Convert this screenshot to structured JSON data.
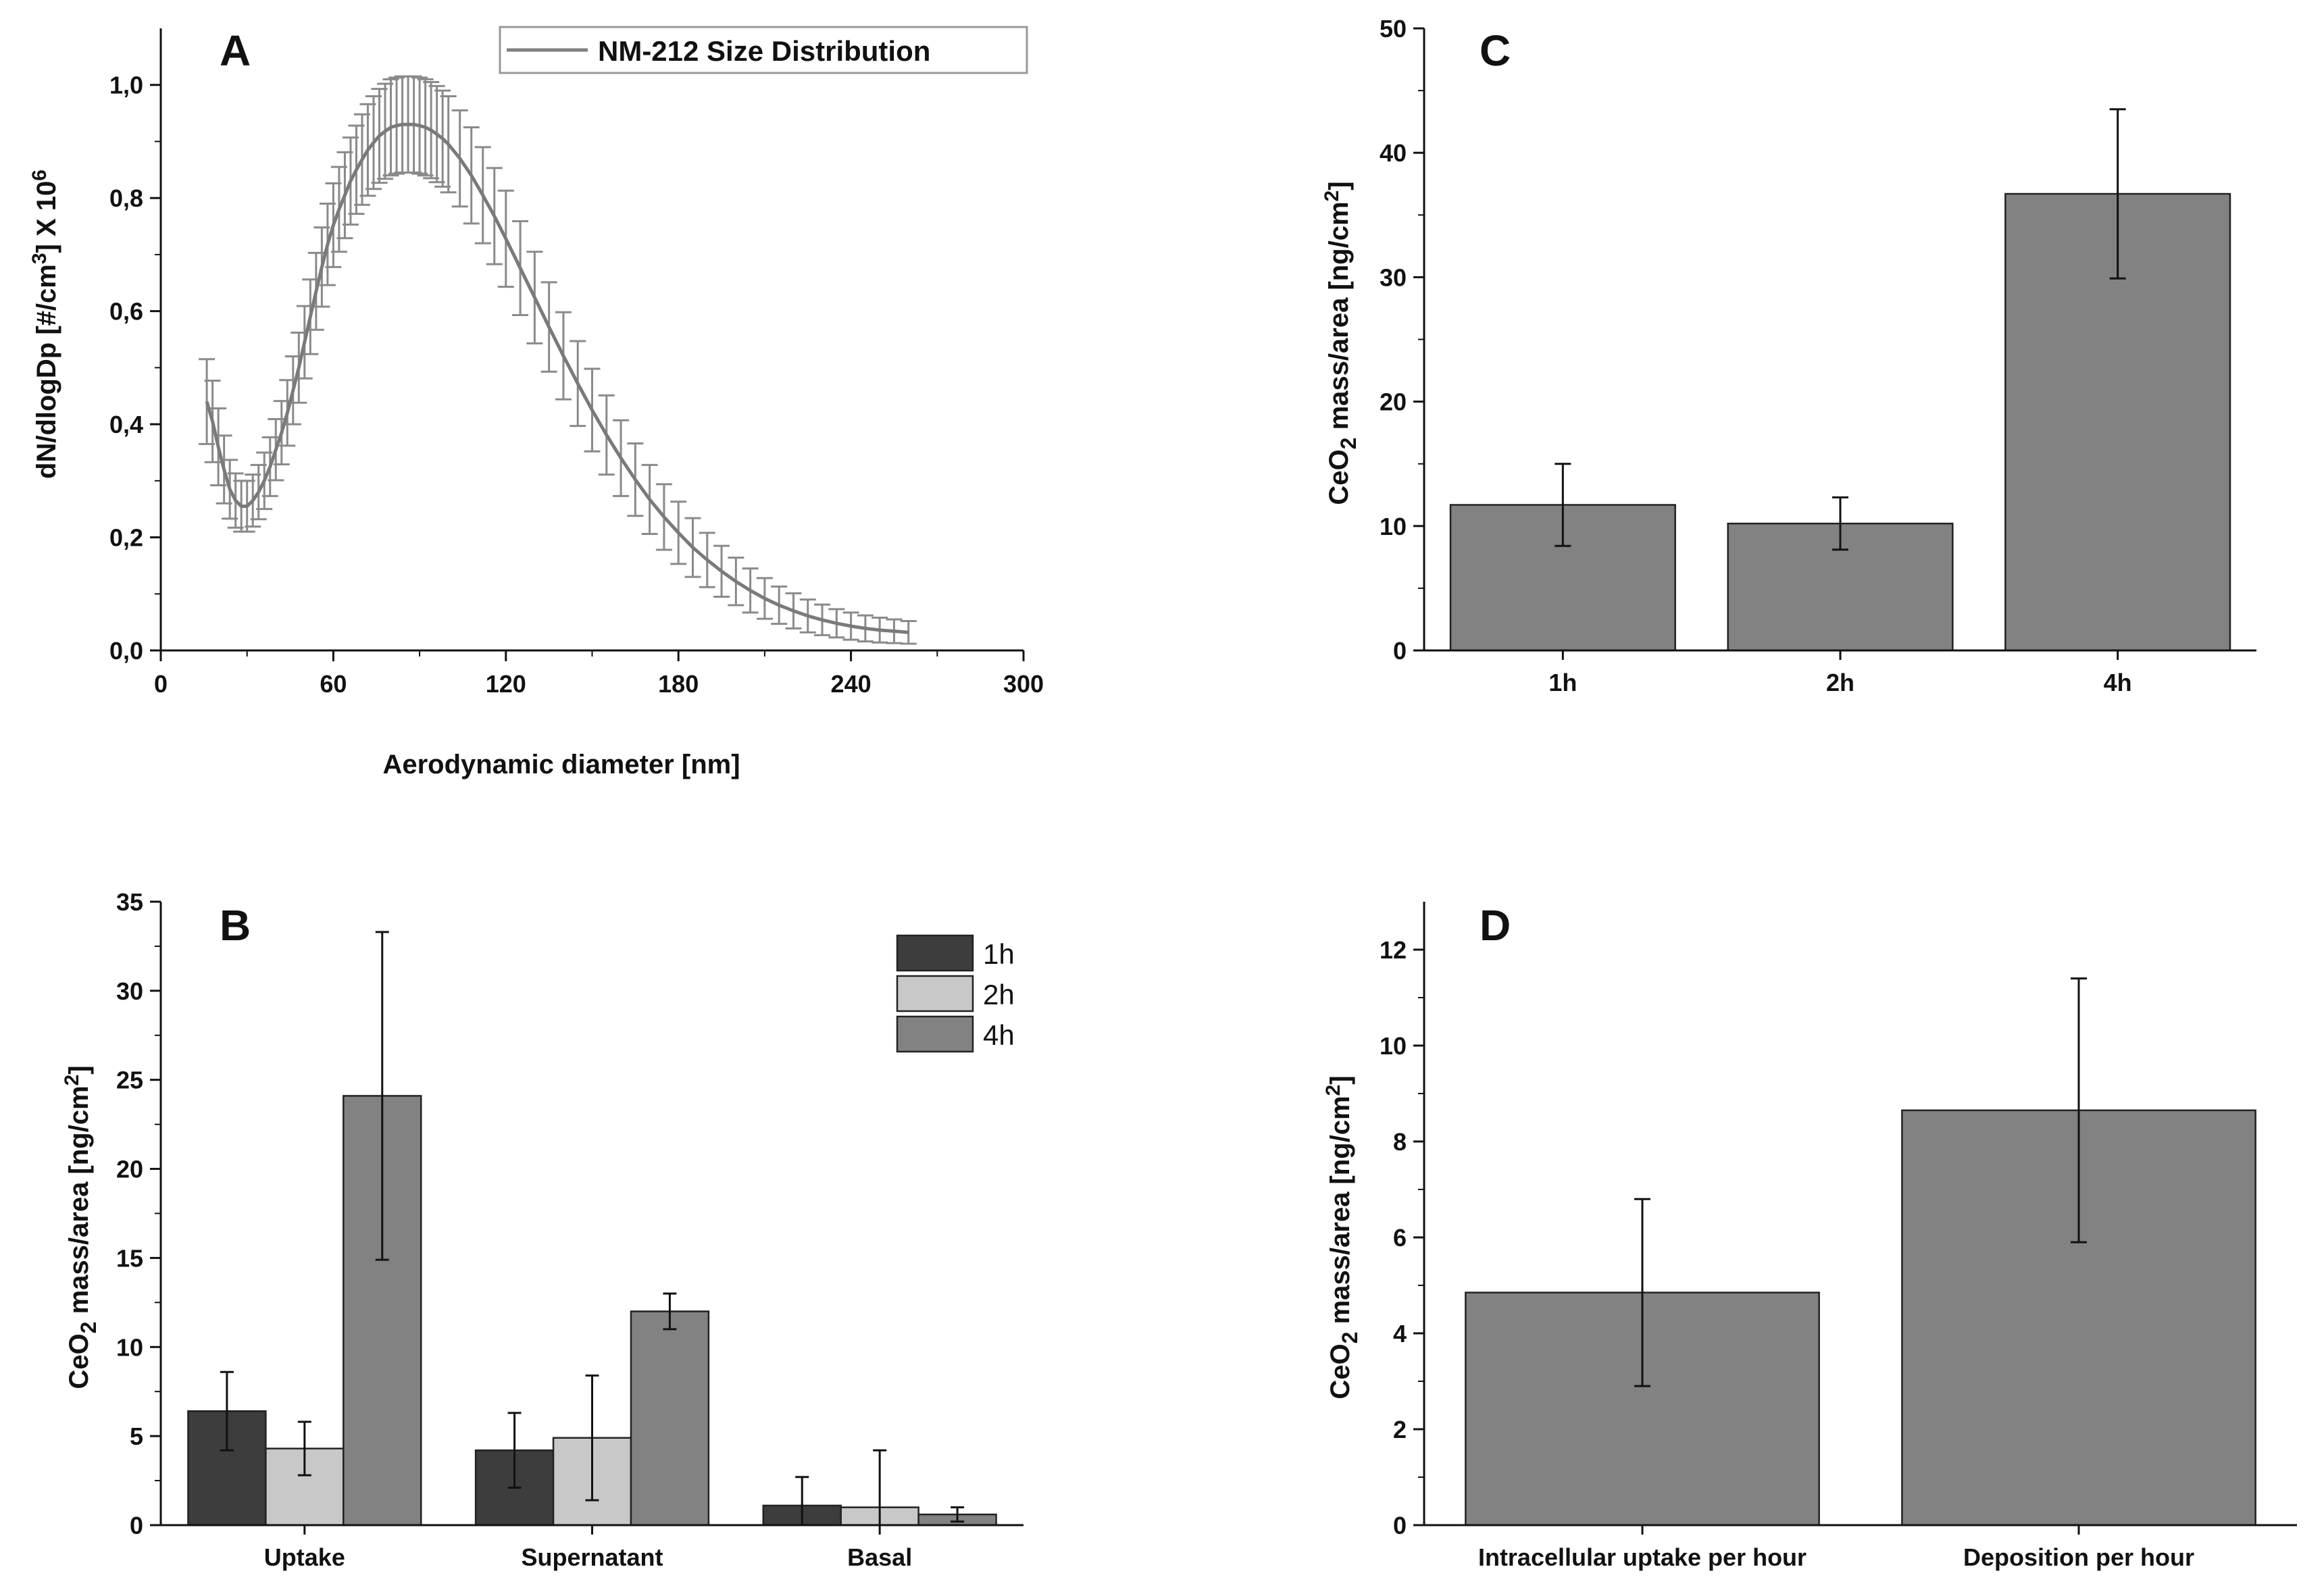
{
  "chart_data": [
    {
      "panel": "A",
      "type": "line",
      "legend": [
        "NM-212 Size Distribution"
      ],
      "xlabel": "Aerodynamic diameter [nm]",
      "ylabel_main": "dN/dlogDp [#/cm",
      "ylabel_sup1": "3",
      "ylabel_mid": "] X 10",
      "ylabel_sup2": "6",
      "xlim": [
        0,
        300
      ],
      "ylim": [
        0,
        1.1
      ],
      "xticks": [
        0,
        60,
        120,
        180,
        240,
        300
      ],
      "xtick_labels": [
        "0",
        "60",
        "120",
        "180",
        "240",
        "300"
      ],
      "yticks": [
        0,
        0.2,
        0.4,
        0.6,
        0.8,
        1.0
      ],
      "ytick_labels": [
        "0,0",
        "0,2",
        "0,4",
        "0,6",
        "0,8",
        "1,0"
      ],
      "series": [
        {
          "name": "NM-212 Size Distribution",
          "x": [
            16,
            18,
            20,
            22,
            24,
            26,
            28,
            30,
            32,
            34,
            36,
            38,
            40,
            42,
            44,
            46,
            48,
            50,
            52,
            54,
            56,
            58,
            60,
            62,
            64,
            66,
            68,
            70,
            72,
            74,
            76,
            78,
            80,
            82,
            84,
            86,
            88,
            90,
            92,
            94,
            96,
            98,
            100,
            104,
            108,
            112,
            116,
            120,
            125,
            130,
            135,
            140,
            145,
            150,
            155,
            160,
            165,
            170,
            175,
            180,
            185,
            190,
            195,
            200,
            205,
            210,
            215,
            220,
            225,
            230,
            235,
            240,
            245,
            250,
            255,
            260
          ],
          "y": [
            0.44,
            0.405,
            0.36,
            0.32,
            0.285,
            0.265,
            0.255,
            0.255,
            0.265,
            0.28,
            0.3,
            0.325,
            0.355,
            0.385,
            0.42,
            0.46,
            0.5,
            0.545,
            0.59,
            0.635,
            0.678,
            0.718,
            0.752,
            0.78,
            0.805,
            0.83,
            0.85,
            0.868,
            0.885,
            0.898,
            0.91,
            0.918,
            0.925,
            0.928,
            0.93,
            0.93,
            0.93,
            0.928,
            0.925,
            0.92,
            0.913,
            0.905,
            0.895,
            0.87,
            0.84,
            0.805,
            0.768,
            0.728,
            0.676,
            0.624,
            0.572,
            0.521,
            0.472,
            0.425,
            0.381,
            0.34,
            0.302,
            0.267,
            0.236,
            0.208,
            0.182,
            0.16,
            0.14,
            0.122,
            0.106,
            0.092,
            0.08,
            0.07,
            0.061,
            0.054,
            0.048,
            0.043,
            0.039,
            0.036,
            0.034,
            0.032
          ],
          "error": [
            0.075,
            0.072,
            0.068,
            0.06,
            0.052,
            0.048,
            0.045,
            0.045,
            0.046,
            0.048,
            0.05,
            0.052,
            0.054,
            0.056,
            0.058,
            0.06,
            0.062,
            0.064,
            0.066,
            0.068,
            0.07,
            0.072,
            0.074,
            0.075,
            0.076,
            0.077,
            0.078,
            0.08,
            0.081,
            0.082,
            0.083,
            0.084,
            0.085,
            0.085,
            0.085,
            0.085,
            0.085,
            0.085,
            0.085,
            0.085,
            0.085,
            0.085,
            0.085,
            0.085,
            0.085,
            0.085,
            0.085,
            0.085,
            0.083,
            0.081,
            0.079,
            0.077,
            0.075,
            0.073,
            0.07,
            0.067,
            0.064,
            0.061,
            0.058,
            0.055,
            0.052,
            0.048,
            0.045,
            0.042,
            0.039,
            0.036,
            0.033,
            0.031,
            0.029,
            0.027,
            0.025,
            0.024,
            0.023,
            0.022,
            0.021,
            0.02
          ]
        }
      ]
    },
    {
      "panel": "B",
      "type": "bar",
      "categories": [
        "Uptake",
        "Supernatant",
        "Basal"
      ],
      "ylabel_pre": "CeO",
      "ylabel_sub": "2",
      "ylabel_post": " mass/area [ng/cm",
      "ylabel_sup": "2",
      "ylabel_end": "]",
      "ylim": [
        0,
        35
      ],
      "yticks": [
        0,
        5,
        10,
        15,
        20,
        25,
        30,
        35
      ],
      "ytick_labels": [
        "0",
        "5",
        "10",
        "15",
        "20",
        "25",
        "30",
        "35"
      ],
      "series": [
        {
          "name": "1h",
          "color": "#3d3d3d",
          "values": [
            6.4,
            4.2,
            1.1
          ],
          "errors": [
            2.2,
            2.1,
            1.6
          ]
        },
        {
          "name": "2h",
          "color": "#c8c8c8",
          "values": [
            4.3,
            4.9,
            1.0
          ],
          "errors": [
            1.5,
            3.5,
            3.2
          ]
        },
        {
          "name": "4h",
          "color": "#828282",
          "values": [
            24.1,
            12.0,
            0.6
          ],
          "errors": [
            9.2,
            1.0,
            0.4
          ]
        }
      ]
    },
    {
      "panel": "C",
      "type": "bar",
      "categories": [
        "1h",
        "2h",
        "4h"
      ],
      "ylabel_pre": "CeO",
      "ylabel_sub": "2",
      "ylabel_post": " mass/area [ng/cm",
      "ylabel_sup": "2",
      "ylabel_end": "]",
      "ylim": [
        0,
        50
      ],
      "yticks": [
        0,
        10,
        20,
        30,
        40,
        50
      ],
      "ytick_labels": [
        "0",
        "10",
        "20",
        "30",
        "40",
        "50"
      ],
      "series": [
        {
          "name": "CeO2 mass/area",
          "color": "#828282",
          "values": [
            11.7,
            10.2,
            36.7
          ],
          "errors": [
            3.3,
            2.1,
            6.8
          ]
        }
      ]
    },
    {
      "panel": "D",
      "type": "bar",
      "categories": [
        "Intracellular uptake per hour",
        "Deposition per hour"
      ],
      "ylabel_pre": "CeO",
      "ylabel_sub": "2",
      "ylabel_post": " mass/area [ng/cm",
      "ylabel_sup": "2",
      "ylabel_end": "]",
      "ylim": [
        0,
        13
      ],
      "yticks": [
        0,
        2,
        4,
        6,
        8,
        10,
        12
      ],
      "ytick_labels": [
        "0",
        "2",
        "4",
        "6",
        "8",
        "10",
        "12"
      ],
      "series": [
        {
          "name": "CeO2 mass/area",
          "color": "#828282",
          "values": [
            4.85,
            8.65
          ],
          "errors": [
            1.95,
            2.75
          ]
        }
      ]
    }
  ]
}
